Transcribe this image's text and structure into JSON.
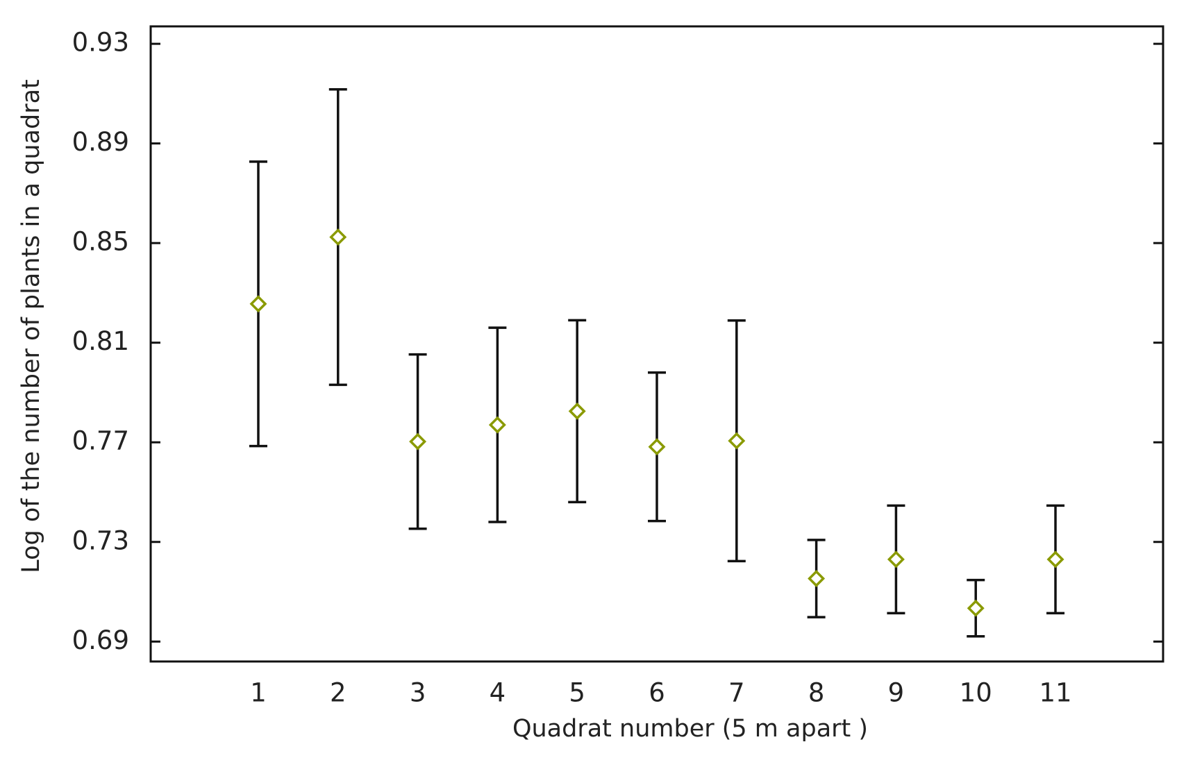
{
  "chart_data": {
    "type": "errorbar",
    "x_label": "Quadrat number (5 m apart )",
    "y_label": "Log of the number of plants in a quadrat",
    "x": [
      1,
      2,
      3,
      4,
      5,
      6,
      7,
      8,
      9,
      10,
      11
    ],
    "values": [
      0.8256,
      0.8524,
      0.7703,
      0.777,
      0.7825,
      0.7682,
      0.7706,
      0.7153,
      0.723,
      0.7034,
      0.723
    ],
    "errors": [
      0.0571,
      0.0593,
      0.035,
      0.039,
      0.0365,
      0.0298,
      0.0483,
      0.0155,
      0.0216,
      0.0113,
      0.0216
    ],
    "color": "#8a9a00",
    "xlim": [
      -0.35,
      12.35
    ],
    "xticks": [
      1,
      2,
      3,
      4,
      5,
      6,
      7,
      8,
      9,
      10,
      11
    ],
    "ylim": [
      0.682,
      0.937
    ],
    "yticks": [
      0.69,
      0.73,
      0.77,
      0.81,
      0.85,
      0.89,
      0.93
    ]
  }
}
